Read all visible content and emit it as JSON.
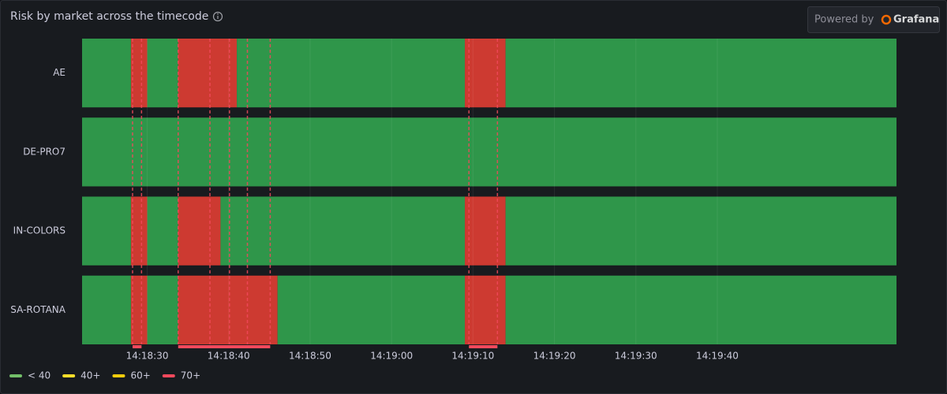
{
  "header": {
    "title": "Risk by market across the timecode",
    "badge": "Powered by",
    "brand": "Grafana"
  },
  "chart_data": {
    "type": "state-timeline",
    "xlim": [
      51502,
      51602
    ],
    "xticks": [
      {
        "value": 51510,
        "label": "14:18:30"
      },
      {
        "value": 51520,
        "label": "14:18:40"
      },
      {
        "value": 51530,
        "label": "14:18:50"
      },
      {
        "value": 51540,
        "label": "14:19:00"
      },
      {
        "value": 51550,
        "label": "14:19:10"
      },
      {
        "value": 51560,
        "label": "14:19:20"
      },
      {
        "value": 51570,
        "label": "14:19:30"
      },
      {
        "value": 51580,
        "label": "14:19:40"
      }
    ],
    "grid": true,
    "legend": "bottom-left",
    "states": [
      {
        "name": "< 40",
        "color": "#73bf69",
        "fill": "#2f964a"
      },
      {
        "name": "40+",
        "color": "#fade2a",
        "fill": "#e0b400"
      },
      {
        "name": "60+",
        "color": "#f2cc0c",
        "fill": "#e0b400"
      },
      {
        "name": "70+",
        "color": "#f2495c",
        "fill": "#cd3a31"
      }
    ],
    "series": [
      {
        "name": "AE",
        "segments": [
          {
            "start": 51502,
            "end": 51508,
            "state": "< 40"
          },
          {
            "start": 51508,
            "end": 51510,
            "state": "70+"
          },
          {
            "start": 51510,
            "end": 51513.8,
            "state": "< 40"
          },
          {
            "start": 51513.8,
            "end": 51521,
            "state": "70+"
          },
          {
            "start": 51521,
            "end": 51549,
            "state": "< 40"
          },
          {
            "start": 51549,
            "end": 51554,
            "state": "70+"
          },
          {
            "start": 51554,
            "end": 51602,
            "state": "< 40"
          }
        ]
      },
      {
        "name": "DE-PRO7",
        "segments": [
          {
            "start": 51502,
            "end": 51602,
            "state": "< 40"
          }
        ]
      },
      {
        "name": "IN-COLORS",
        "segments": [
          {
            "start": 51502,
            "end": 51508,
            "state": "< 40"
          },
          {
            "start": 51508,
            "end": 51510,
            "state": "70+"
          },
          {
            "start": 51510,
            "end": 51513.8,
            "state": "< 40"
          },
          {
            "start": 51513.8,
            "end": 51519,
            "state": "70+"
          },
          {
            "start": 51519,
            "end": 51549,
            "state": "< 40"
          },
          {
            "start": 51549,
            "end": 51554,
            "state": "70+"
          },
          {
            "start": 51554,
            "end": 51602,
            "state": "< 40"
          }
        ]
      },
      {
        "name": "SA-ROTANA",
        "segments": [
          {
            "start": 51502,
            "end": 51508,
            "state": "< 40"
          },
          {
            "start": 51508,
            "end": 51510,
            "state": "70+"
          },
          {
            "start": 51510,
            "end": 51513.8,
            "state": "< 40"
          },
          {
            "start": 51513.8,
            "end": 51526,
            "state": "70+"
          },
          {
            "start": 51526,
            "end": 51549,
            "state": "< 40"
          },
          {
            "start": 51549,
            "end": 51554,
            "state": "70+"
          },
          {
            "start": 51554,
            "end": 51602,
            "state": "< 40"
          }
        ]
      }
    ],
    "annotation_color": "#f2495c",
    "annotations": [
      {
        "start": 51508.2,
        "end": 51509.3
      },
      {
        "start": 51513.8,
        "end": 51525.1
      },
      {
        "start": 51549.5,
        "end": 51553
      },
      {
        "time": 51517.7
      },
      {
        "time": 51520.1
      },
      {
        "time": 51522.3
      }
    ]
  }
}
